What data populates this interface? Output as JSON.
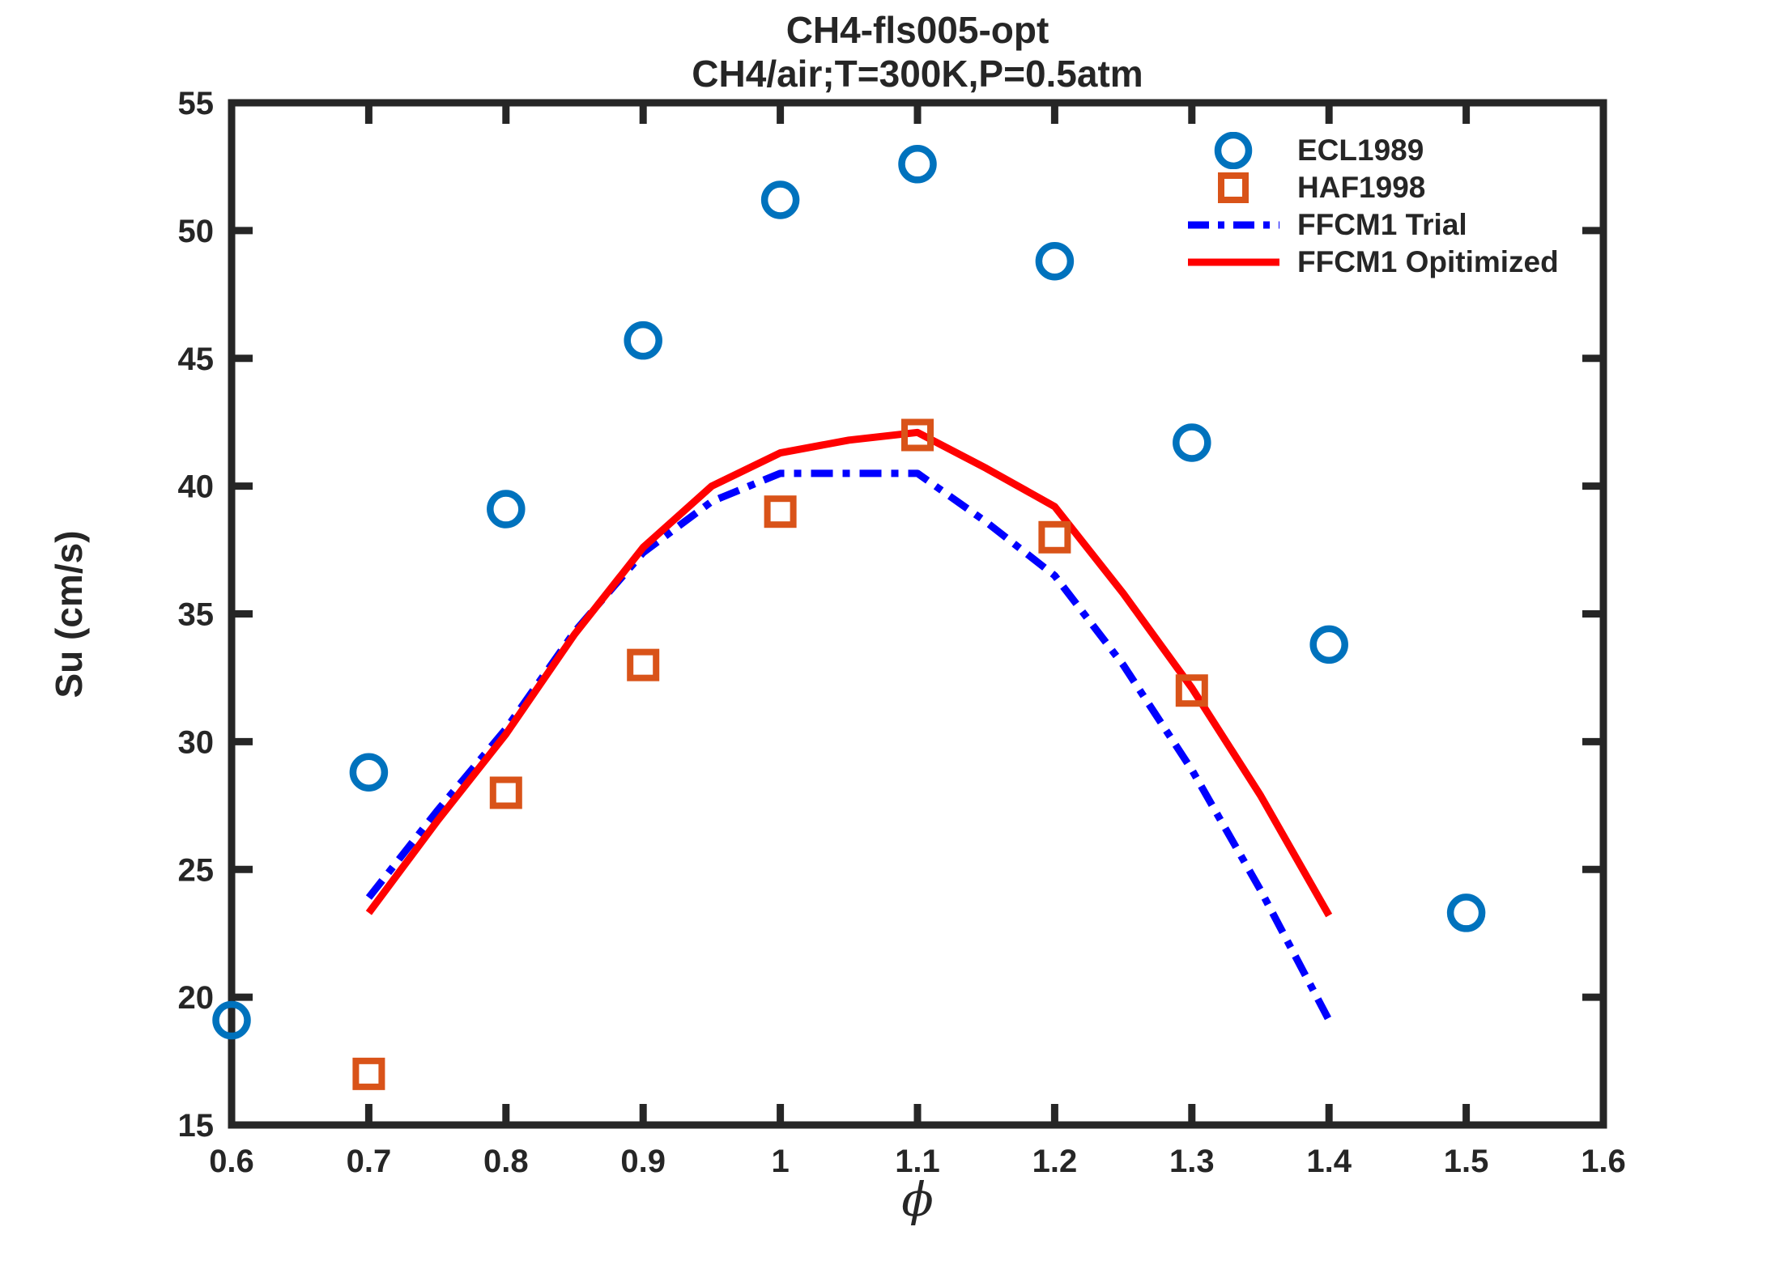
{
  "chart_data": {
    "type": "scatter",
    "title": "CH4-fls005-opt",
    "subtitle": "CH4/air;T=300K,P=0.5atm",
    "xlabel": "ϕ",
    "ylabel": "Su (cm/s)",
    "xlim": [
      0.6,
      1.6
    ],
    "ylim": [
      15,
      55
    ],
    "x_ticks": [
      0.6,
      0.7,
      0.8,
      0.9,
      1.0,
      1.1,
      1.2,
      1.3,
      1.4,
      1.5,
      1.6
    ],
    "x_tick_labels": [
      "0.6",
      "0.7",
      "0.8",
      "0.9",
      "1",
      "1.1",
      "1.2",
      "1.3",
      "1.4",
      "1.5",
      "1.6"
    ],
    "y_ticks": [
      15,
      20,
      25,
      30,
      35,
      40,
      45,
      50,
      55
    ],
    "y_tick_labels": [
      "15",
      "20",
      "25",
      "30",
      "35",
      "40",
      "45",
      "50",
      "55"
    ],
    "grid": false,
    "legend_position": "top-right-inside-no-frame",
    "axis_color": "#262626",
    "series": [
      {
        "name": "ECL1989",
        "type": "scatter",
        "marker": "circle",
        "color": "#0072BD",
        "x": [
          0.6,
          0.7,
          0.8,
          0.9,
          1.0,
          1.1,
          1.2,
          1.3,
          1.4,
          1.5
        ],
        "y": [
          19.1,
          28.8,
          39.1,
          45.7,
          51.2,
          52.6,
          48.8,
          41.7,
          33.8,
          23.3
        ]
      },
      {
        "name": "HAF1998",
        "type": "scatter",
        "marker": "square",
        "color": "#D95319",
        "x": [
          0.7,
          0.8,
          0.9,
          1.0,
          1.1,
          1.2,
          1.3
        ],
        "y": [
          17.0,
          28.0,
          33.0,
          39.0,
          42.0,
          38.0,
          32.0
        ]
      },
      {
        "name": "FFCM1 Trial",
        "type": "line",
        "style": "dash-dot",
        "color": "#0000FF",
        "x": [
          0.7,
          0.75,
          0.8,
          0.85,
          0.9,
          0.95,
          1.0,
          1.05,
          1.1,
          1.15,
          1.2,
          1.25,
          1.3,
          1.35,
          1.4
        ],
        "y": [
          23.9,
          27.3,
          30.5,
          34.3,
          37.4,
          39.4,
          40.5,
          40.5,
          40.5,
          38.6,
          36.5,
          33.0,
          28.9,
          24.2,
          19.1
        ]
      },
      {
        "name": "FFCM1 Opitimized",
        "type": "line",
        "style": "solid",
        "color": "#FF0000",
        "x": [
          0.7,
          0.75,
          0.8,
          0.85,
          0.9,
          0.95,
          1.0,
          1.05,
          1.1,
          1.15,
          1.2,
          1.25,
          1.3,
          1.35,
          1.4
        ],
        "y": [
          23.3,
          26.9,
          30.3,
          34.2,
          37.6,
          40.0,
          41.3,
          41.8,
          42.1,
          40.7,
          39.2,
          35.8,
          32.1,
          27.9,
          23.2
        ]
      }
    ]
  }
}
